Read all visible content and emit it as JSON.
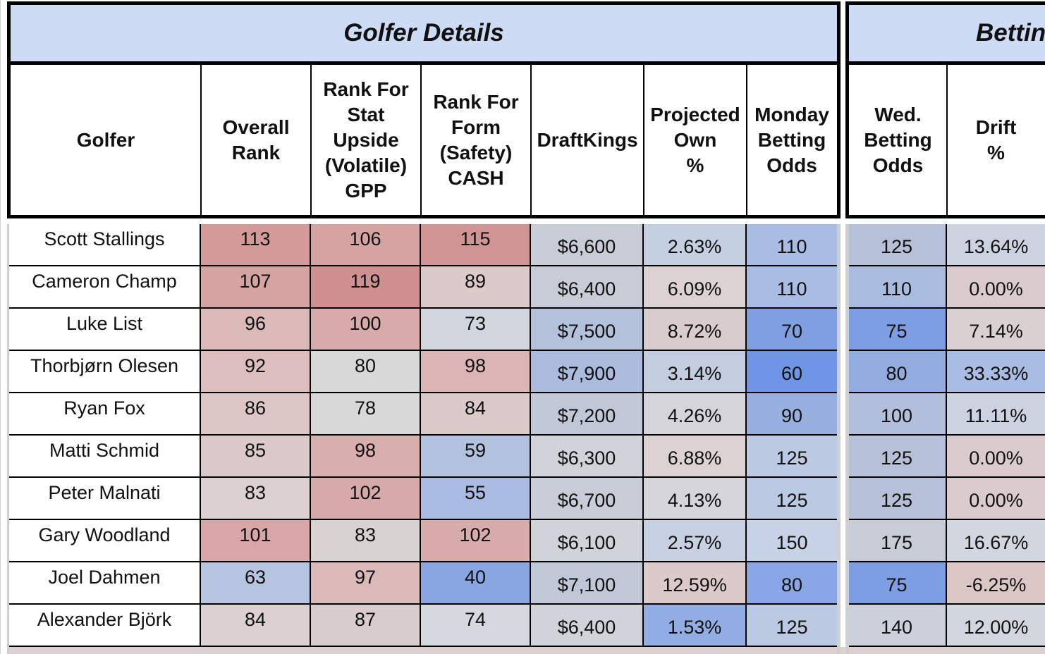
{
  "groups": {
    "golfer_details": "Golfer Details",
    "betting": "Betting"
  },
  "headers": [
    "Golfer",
    "Overall\nRank",
    "Rank For\nStat\nUpside\n(Volatile)\nGPP",
    "Rank For\nForm\n(Safety)\nCASH",
    "DraftKings",
    "Projected\nOwn\n%",
    "Monday\nBetting\nOdds",
    "Wed.\nBetting\nOdds",
    "Drift\n%"
  ],
  "rows": [
    {
      "golfer": "Scott Stallings",
      "overall": "113",
      "gpp": "106",
      "cash": "115",
      "dk": "$6,600",
      "own": "2.63%",
      "monday": "110",
      "wed": "125",
      "drift": "13.64%"
    },
    {
      "golfer": "Cameron Champ",
      "overall": "107",
      "gpp": "119",
      "cash": "89",
      "dk": "$6,400",
      "own": "6.09%",
      "monday": "110",
      "wed": "110",
      "drift": "0.00%"
    },
    {
      "golfer": "Luke List",
      "overall": "96",
      "gpp": "100",
      "cash": "73",
      "dk": "$7,500",
      "own": "8.72%",
      "monday": "70",
      "wed": "75",
      "drift": "7.14%"
    },
    {
      "golfer": "Thorbjørn Olesen",
      "overall": "92",
      "gpp": "80",
      "cash": "98",
      "dk": "$7,900",
      "own": "3.14%",
      "monday": "60",
      "wed": "80",
      "drift": "33.33%"
    },
    {
      "golfer": "Ryan Fox",
      "overall": "86",
      "gpp": "78",
      "cash": "84",
      "dk": "$7,200",
      "own": "4.26%",
      "monday": "90",
      "wed": "100",
      "drift": "11.11%"
    },
    {
      "golfer": "Matti Schmid",
      "overall": "85",
      "gpp": "98",
      "cash": "59",
      "dk": "$6,300",
      "own": "6.88%",
      "monday": "125",
      "wed": "125",
      "drift": "0.00%"
    },
    {
      "golfer": "Peter Malnati",
      "overall": "83",
      "gpp": "102",
      "cash": "55",
      "dk": "$6,700",
      "own": "4.13%",
      "monday": "125",
      "wed": "125",
      "drift": "0.00%"
    },
    {
      "golfer": "Gary Woodland",
      "overall": "101",
      "gpp": "83",
      "cash": "102",
      "dk": "$6,100",
      "own": "2.57%",
      "monday": "150",
      "wed": "175",
      "drift": "16.67%"
    },
    {
      "golfer": "Joel Dahmen",
      "overall": "63",
      "gpp": "97",
      "cash": "40",
      "dk": "$7,100",
      "own": "12.59%",
      "monday": "80",
      "wed": "75",
      "drift": "-6.25%"
    },
    {
      "golfer": "Alexander Björk",
      "overall": "84",
      "gpp": "87",
      "cash": "74",
      "dk": "$6,400",
      "own": "1.53%",
      "monday": "125",
      "wed": "140",
      "drift": "12.00%"
    }
  ],
  "cell_colors": [
    [
      "#d49a9a",
      "#d6a3a3",
      "#d09494",
      "#c8ccd6",
      "#c5cfe2",
      "#a9bde4",
      "#b6c1d8",
      "#ccd2df"
    ],
    [
      "#d6a3a3",
      "#cf9090",
      "#dcc9c9",
      "#c8ccd6",
      "#dcd2d2",
      "#a9bde4",
      "#a9bbde",
      "#dacccc"
    ],
    [
      "#dbb9b9",
      "#d8aaaa",
      "#d1d5de",
      "#b4c1da",
      "#d9cccc",
      "#7f9fe2",
      "#7d9ee2",
      "#dbd0d0"
    ],
    [
      "#dcbebe",
      "#d8d8d8",
      "#dbb5b5",
      "#aabbde",
      "#c4cde0",
      "#6e95e6",
      "#92ace0",
      "#a8bce4"
    ],
    [
      "#dcc6c6",
      "#d8d8d8",
      "#dcc9c9",
      "#c0c8d8",
      "#d4d4da",
      "#98b0e0",
      "#b2bfda",
      "#ccd2df"
    ],
    [
      "#dccaca",
      "#d8aeae",
      "#b2c1de",
      "#d0d3da",
      "#dcd2d2",
      "#bcc9e2",
      "#b6c1d8",
      "#dacccc"
    ],
    [
      "#dcd0d0",
      "#d8a9a9",
      "#a9bbe0",
      "#c8ccd6",
      "#d5d5da",
      "#bcc9e2",
      "#b6c1d8",
      "#dacccc"
    ],
    [
      "#d8a6a6",
      "#d8d2d2",
      "#d8acac",
      "#d0d3da",
      "#c8d1e2",
      "#c7d2e6",
      "#c8ccd6",
      "#d2d6df"
    ],
    [
      "#b7c4e0",
      "#dab9b9",
      "#8aa6e2",
      "#c0c8d8",
      "#dccaca",
      "#89a7e6",
      "#7d9ee2",
      "#dbc6c6"
    ],
    [
      "#dcd0d0",
      "#d8cccc",
      "#d5d8de",
      "#d0d3da",
      "#92ace4",
      "#bcc9e2",
      "#ccd0da",
      "#d2d6df"
    ]
  ]
}
